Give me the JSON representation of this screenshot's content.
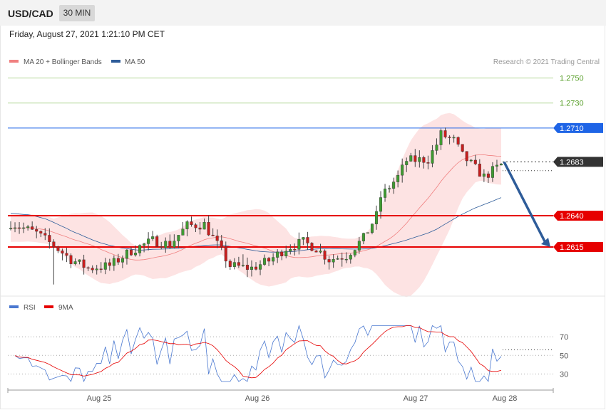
{
  "header": {
    "symbol": "USD/CAD",
    "timeframe": "30 MIN"
  },
  "datetime": "Friday, August 27, 2021 1:21:10 PM CET",
  "legend_main": [
    {
      "name": "MA 20 + Bollinger Bands",
      "color": "#f08080"
    },
    {
      "name": "MA 50",
      "color": "#2e5c99"
    }
  ],
  "copyright": "Research © 2021 Trading Central",
  "price_levels": [
    {
      "value": 1.275,
      "label": "1.2750",
      "style": "green-text",
      "color": "#5aa02c"
    },
    {
      "value": 1.273,
      "label": "1.2730",
      "style": "green-text",
      "color": "#5aa02c"
    },
    {
      "value": 1.271,
      "label": "1.2710",
      "style": "blue-box",
      "color": "#1e64e6"
    },
    {
      "value": 1.2683,
      "label": "1.2683",
      "style": "dark-box",
      "color": "#333333"
    },
    {
      "value": 1.264,
      "label": "1.2640",
      "style": "red-box",
      "color": "#e60000"
    },
    {
      "value": 1.2615,
      "label": "1.2615",
      "style": "red-box",
      "color": "#e60000"
    }
  ],
  "legend_rsi": [
    {
      "name": "RSI",
      "color": "#4a78d0"
    },
    {
      "name": "9MA",
      "color": "#e60000"
    }
  ],
  "rsi_levels": [
    {
      "value": 70,
      "label": "70"
    },
    {
      "value": 50,
      "label": "50"
    },
    {
      "value": 30,
      "label": "30"
    }
  ],
  "x_labels": [
    "Aug 25",
    "Aug 26",
    "Aug 27",
    "Aug 28"
  ],
  "chart_data": {
    "type": "candlestick",
    "ylim": [
      1.2578,
      1.276
    ],
    "rsi_ylim": [
      15,
      90
    ],
    "forecast": {
      "from": 1.2683,
      "to": 1.2615
    },
    "bollinger_width": 0.0022
  }
}
